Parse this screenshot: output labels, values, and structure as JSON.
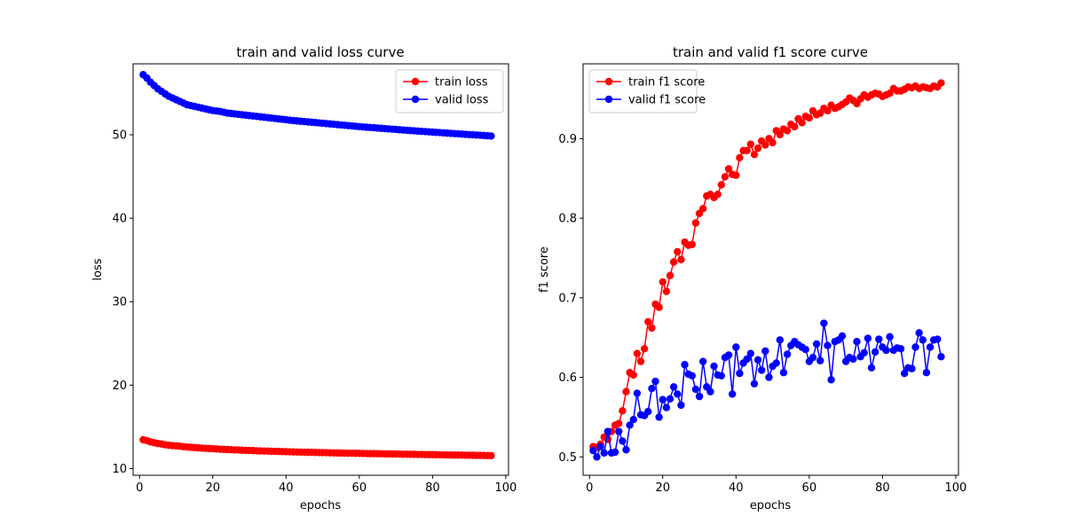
{
  "figure": {
    "background": "#ffffff"
  },
  "chart_data": [
    {
      "type": "line",
      "title": "train and valid loss curve",
      "xlabel": "epochs",
      "ylabel": "loss",
      "xlim": [
        -1.75,
        100.75
      ],
      "ylim": [
        9.2,
        58.5
      ],
      "xticks": [
        0,
        20,
        40,
        60,
        80,
        100
      ],
      "yticks": [
        10,
        20,
        30,
        40,
        50
      ],
      "grid": false,
      "legend": "upper right",
      "marker": "circle",
      "series": [
        {
          "name": "train loss",
          "color": "#ff0000",
          "x": [
            1,
            2,
            3,
            4,
            5,
            6,
            7,
            8,
            9,
            10,
            11,
            12,
            13,
            14,
            15,
            16,
            17,
            18,
            19,
            20,
            21,
            22,
            23,
            24,
            25,
            26,
            27,
            28,
            29,
            30,
            31,
            32,
            33,
            34,
            35,
            36,
            37,
            38,
            39,
            40,
            41,
            42,
            43,
            44,
            45,
            46,
            47,
            48,
            49,
            50,
            51,
            52,
            53,
            54,
            55,
            56,
            57,
            58,
            59,
            60,
            61,
            62,
            63,
            64,
            65,
            66,
            67,
            68,
            69,
            70,
            71,
            72,
            73,
            74,
            75,
            76,
            77,
            78,
            79,
            80,
            81,
            82,
            83,
            84,
            85,
            86,
            87,
            88,
            89,
            90,
            91,
            92,
            93,
            94,
            95,
            96
          ],
          "y": [
            13.45,
            13.35,
            13.2,
            13.1,
            13.0,
            12.95,
            12.85,
            12.8,
            12.75,
            12.72,
            12.68,
            12.62,
            12.58,
            12.55,
            12.52,
            12.48,
            12.45,
            12.42,
            12.4,
            12.38,
            12.35,
            12.32,
            12.3,
            12.28,
            12.26,
            12.24,
            12.22,
            12.2,
            12.18,
            12.17,
            12.15,
            12.13,
            12.12,
            12.1,
            12.09,
            12.07,
            12.06,
            12.05,
            12.03,
            12.02,
            12.01,
            11.99,
            11.98,
            11.97,
            11.96,
            11.95,
            11.94,
            11.93,
            11.92,
            11.91,
            11.9,
            11.89,
            11.88,
            11.87,
            11.86,
            11.85,
            11.84,
            11.84,
            11.83,
            11.82,
            11.81,
            11.8,
            11.79,
            11.79,
            11.78,
            11.77,
            11.76,
            11.75,
            11.75,
            11.74,
            11.73,
            11.72,
            11.72,
            11.71,
            11.7,
            11.69,
            11.69,
            11.68,
            11.67,
            11.67,
            11.66,
            11.65,
            11.64,
            11.64,
            11.63,
            11.62,
            11.62,
            11.61,
            11.6,
            11.6,
            11.59,
            11.58,
            11.58,
            11.57,
            11.56,
            11.55
          ]
        },
        {
          "name": "valid loss",
          "color": "#0000ff",
          "x": [
            1,
            2,
            3,
            4,
            5,
            6,
            7,
            8,
            9,
            10,
            11,
            12,
            13,
            14,
            15,
            16,
            17,
            18,
            19,
            20,
            21,
            22,
            23,
            24,
            25,
            26,
            27,
            28,
            29,
            30,
            31,
            32,
            33,
            34,
            35,
            36,
            37,
            38,
            39,
            40,
            41,
            42,
            43,
            44,
            45,
            46,
            47,
            48,
            49,
            50,
            51,
            52,
            53,
            54,
            55,
            56,
            57,
            58,
            59,
            60,
            61,
            62,
            63,
            64,
            65,
            66,
            67,
            68,
            69,
            70,
            71,
            72,
            73,
            74,
            75,
            76,
            77,
            78,
            79,
            80,
            81,
            82,
            83,
            84,
            85,
            86,
            87,
            88,
            89,
            90,
            91,
            92,
            93,
            94,
            95,
            96
          ],
          "y": [
            57.2,
            56.8,
            56.3,
            55.9,
            55.5,
            55.2,
            54.9,
            54.6,
            54.4,
            54.2,
            54.0,
            53.8,
            53.6,
            53.5,
            53.4,
            53.3,
            53.2,
            53.1,
            53.0,
            52.9,
            52.85,
            52.8,
            52.7,
            52.6,
            52.55,
            52.5,
            52.45,
            52.4,
            52.35,
            52.3,
            52.25,
            52.2,
            52.15,
            52.1,
            52.05,
            52.0,
            51.95,
            51.9,
            51.85,
            51.8,
            51.75,
            51.7,
            51.66,
            51.62,
            51.58,
            51.54,
            51.5,
            51.46,
            51.42,
            51.38,
            51.34,
            51.3,
            51.26,
            51.22,
            51.18,
            51.14,
            51.1,
            51.06,
            51.02,
            50.98,
            50.94,
            50.9,
            50.87,
            50.84,
            50.8,
            50.77,
            50.74,
            50.7,
            50.67,
            50.64,
            50.6,
            50.57,
            50.54,
            50.5,
            50.47,
            50.44,
            50.41,
            50.38,
            50.35,
            50.32,
            50.29,
            50.26,
            50.23,
            50.2,
            50.17,
            50.14,
            50.11,
            50.08,
            50.05,
            50.02,
            50.0,
            49.97,
            49.94,
            49.91,
            49.88,
            49.85
          ]
        }
      ]
    },
    {
      "type": "line",
      "title": "train and valid f1 score curve",
      "xlabel": "epochs",
      "ylabel": "f1 score",
      "xlim": [
        -1.75,
        100.75
      ],
      "ylim": [
        0.477,
        0.994
      ],
      "xticks": [
        0,
        20,
        40,
        60,
        80,
        100
      ],
      "yticks": [
        0.5,
        0.6,
        0.7,
        0.8,
        0.9
      ],
      "grid": false,
      "legend": "upper left",
      "marker": "circle",
      "series": [
        {
          "name": "train f1 score",
          "color": "#ff0000",
          "x": [
            1,
            2,
            3,
            4,
            5,
            6,
            7,
            8,
            9,
            10,
            11,
            12,
            13,
            14,
            15,
            16,
            17,
            18,
            19,
            20,
            21,
            22,
            23,
            24,
            25,
            26,
            27,
            28,
            29,
            30,
            31,
            32,
            33,
            34,
            35,
            36,
            37,
            38,
            39,
            40,
            41,
            42,
            43,
            44,
            45,
            46,
            47,
            48,
            49,
            50,
            51,
            52,
            53,
            54,
            55,
            56,
            57,
            58,
            59,
            60,
            61,
            62,
            63,
            64,
            65,
            66,
            67,
            68,
            69,
            70,
            71,
            72,
            73,
            74,
            75,
            76,
            77,
            78,
            79,
            80,
            81,
            82,
            83,
            84,
            85,
            86,
            87,
            88,
            89,
            90,
            91,
            92,
            93,
            94,
            95,
            96
          ],
          "y": [
            0.513,
            0.512,
            0.516,
            0.525,
            0.522,
            0.532,
            0.54,
            0.542,
            0.558,
            0.582,
            0.606,
            0.603,
            0.63,
            0.62,
            0.636,
            0.67,
            0.662,
            0.692,
            0.688,
            0.72,
            0.708,
            0.728,
            0.745,
            0.758,
            0.748,
            0.77,
            0.766,
            0.767,
            0.794,
            0.806,
            0.812,
            0.828,
            0.83,
            0.826,
            0.83,
            0.842,
            0.852,
            0.862,
            0.855,
            0.854,
            0.876,
            0.885,
            0.885,
            0.893,
            0.88,
            0.888,
            0.897,
            0.892,
            0.9,
            0.895,
            0.91,
            0.905,
            0.912,
            0.91,
            0.918,
            0.915,
            0.925,
            0.92,
            0.928,
            0.926,
            0.935,
            0.93,
            0.932,
            0.938,
            0.935,
            0.942,
            0.938,
            0.94,
            0.943,
            0.946,
            0.951,
            0.948,
            0.944,
            0.95,
            0.955,
            0.952,
            0.955,
            0.957,
            0.956,
            0.953,
            0.955,
            0.957,
            0.963,
            0.96,
            0.96,
            0.962,
            0.965,
            0.964,
            0.966,
            0.963,
            0.965,
            0.964,
            0.963,
            0.966,
            0.965,
            0.97
          ]
        },
        {
          "name": "valid f1 score",
          "color": "#0000ff",
          "x": [
            1,
            2,
            3,
            4,
            5,
            6,
            7,
            8,
            9,
            10,
            11,
            12,
            13,
            14,
            15,
            16,
            17,
            18,
            19,
            20,
            21,
            22,
            23,
            24,
            25,
            26,
            27,
            28,
            29,
            30,
            31,
            32,
            33,
            34,
            35,
            36,
            37,
            38,
            39,
            40,
            41,
            42,
            43,
            44,
            45,
            46,
            47,
            48,
            49,
            50,
            51,
            52,
            53,
            54,
            55,
            56,
            57,
            58,
            59,
            60,
            61,
            62,
            63,
            64,
            65,
            66,
            67,
            68,
            69,
            70,
            71,
            72,
            73,
            74,
            75,
            76,
            77,
            78,
            79,
            80,
            81,
            82,
            83,
            84,
            85,
            86,
            87,
            88,
            89,
            90,
            91,
            92,
            93,
            94,
            95,
            96
          ],
          "y": [
            0.508,
            0.5,
            0.513,
            0.505,
            0.532,
            0.505,
            0.506,
            0.532,
            0.52,
            0.509,
            0.54,
            0.547,
            0.58,
            0.553,
            0.552,
            0.557,
            0.586,
            0.595,
            0.55,
            0.572,
            0.562,
            0.573,
            0.588,
            0.579,
            0.565,
            0.616,
            0.604,
            0.602,
            0.585,
            0.576,
            0.62,
            0.588,
            0.582,
            0.614,
            0.603,
            0.602,
            0.625,
            0.628,
            0.579,
            0.638,
            0.605,
            0.618,
            0.623,
            0.63,
            0.592,
            0.622,
            0.609,
            0.633,
            0.6,
            0.614,
            0.618,
            0.647,
            0.606,
            0.629,
            0.64,
            0.645,
            0.641,
            0.638,
            0.635,
            0.62,
            0.625,
            0.642,
            0.621,
            0.668,
            0.64,
            0.597,
            0.645,
            0.647,
            0.652,
            0.62,
            0.625,
            0.623,
            0.645,
            0.626,
            0.631,
            0.649,
            0.612,
            0.632,
            0.648,
            0.638,
            0.634,
            0.651,
            0.634,
            0.637,
            0.636,
            0.605,
            0.612,
            0.611,
            0.638,
            0.656,
            0.647,
            0.606,
            0.638,
            0.647,
            0.648,
            0.626
          ]
        }
      ]
    }
  ]
}
